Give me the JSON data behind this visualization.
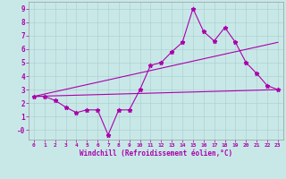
{
  "bg_color": "#c8e8e8",
  "line_color": "#aa00aa",
  "xlim": [
    -0.5,
    23.5
  ],
  "ylim": [
    -0.7,
    9.5
  ],
  "yticks": [
    0,
    1,
    2,
    3,
    4,
    5,
    6,
    7,
    8,
    9
  ],
  "ytick_labels": [
    "-0",
    "1",
    "2",
    "3",
    "4",
    "5",
    "6",
    "7",
    "8",
    "9"
  ],
  "xticks": [
    0,
    1,
    2,
    3,
    4,
    5,
    6,
    7,
    8,
    9,
    10,
    11,
    12,
    13,
    14,
    15,
    16,
    17,
    18,
    19,
    20,
    21,
    22,
    23
  ],
  "line1_x": [
    0,
    1,
    2,
    3,
    4,
    5,
    6,
    7,
    8,
    9,
    10,
    11,
    12,
    13,
    14,
    15,
    16,
    17,
    18,
    19,
    20,
    21,
    22,
    23
  ],
  "line1_y": [
    2.5,
    2.5,
    2.2,
    1.7,
    1.3,
    1.5,
    1.5,
    -0.35,
    1.5,
    1.5,
    3.0,
    4.8,
    5.0,
    5.8,
    6.5,
    9.0,
    7.3,
    6.6,
    7.6,
    6.5,
    5.0,
    4.2,
    3.3,
    3.0
  ],
  "line2_x": [
    0,
    23
  ],
  "line2_y": [
    2.5,
    3.0
  ],
  "line3_x": [
    0,
    23
  ],
  "line3_y": [
    2.5,
    6.5
  ],
  "xlabel": "Windchill (Refroidissement éolien,°C)"
}
